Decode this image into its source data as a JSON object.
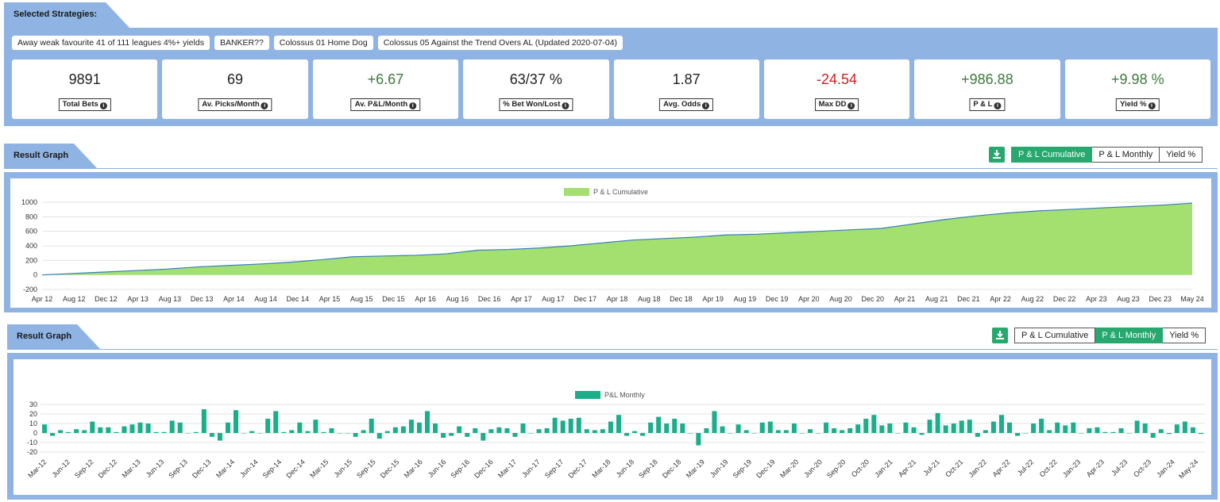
{
  "strategies": {
    "title": "Selected Strategies:",
    "chips": [
      "Away weak favourite 41 of 111 leagues 4%+ yields",
      "BANKER??",
      "Colossus 01 Home Dog",
      "Colossus 05 Against the Trend Overs AL (Updated 2020-07-04)"
    ]
  },
  "stats": [
    {
      "value": "9891",
      "label": "Total Bets",
      "tone": "neutral"
    },
    {
      "value": "69",
      "label": "Av. Picks/Month",
      "tone": "neutral"
    },
    {
      "value": "+6.67",
      "label": "Av. P&L/Month",
      "tone": "pos"
    },
    {
      "value": "63/37 %",
      "label": "% Bet Won/Lost",
      "tone": "neutral"
    },
    {
      "value": "1.87",
      "label": "Avg. Odds",
      "tone": "neutral"
    },
    {
      "value": "-24.54",
      "label": "Max DD",
      "tone": "neg"
    },
    {
      "value": "+986.88",
      "label": "P & L",
      "tone": "pos"
    },
    {
      "value": "+9.98 %",
      "label": "Yield %",
      "tone": "pos"
    }
  ],
  "graph1": {
    "title": "Result Graph",
    "buttons": [
      "P & L Cumulative",
      "P & L Monthly",
      "Yield %"
    ],
    "active": 0
  },
  "graph2": {
    "title": "Result Graph",
    "buttons": [
      "P & L Cumulative",
      "P & L Monthly",
      "Yield %"
    ],
    "active": 1
  },
  "colors": {
    "panel_blue": "#8fb4e3",
    "accent_green": "#27a86e",
    "area_fill": "#a3e070",
    "area_line": "#3a7dbb",
    "bar": "#1aaf8a"
  },
  "chart_data": [
    {
      "type": "area",
      "legend": "P & L Cumulative",
      "legend_position": "top-center",
      "ylim": [
        -200,
        1000
      ],
      "yticks": [
        1000,
        800,
        600,
        400,
        200,
        0,
        -200
      ],
      "x_tick_labels": [
        "Apr 12",
        "Aug 12",
        "Dec 12",
        "Apr 13",
        "Aug 13",
        "Dec 13",
        "Apr 14",
        "Aug 14",
        "Dec 14",
        "Apr 15",
        "Aug 15",
        "Dec 15",
        "Apr 16",
        "Aug 16",
        "Dec 16",
        "Apr 17",
        "Aug 17",
        "Dec 17",
        "Apr 18",
        "Aug 18",
        "Dec 18",
        "Apr 19",
        "Aug 19",
        "Dec 19",
        "Apr 20",
        "Aug 20",
        "Dec 20",
        "Apr 21",
        "Aug 21",
        "Dec 21",
        "Apr 22",
        "Aug 22",
        "Dec 22",
        "Apr 23",
        "Aug 23",
        "Dec 23",
        "May 24"
      ],
      "series": [
        {
          "values": [
            0,
            20,
            40,
            60,
            80,
            110,
            130,
            150,
            175,
            210,
            250,
            260,
            270,
            290,
            340,
            350,
            370,
            400,
            440,
            480,
            500,
            520,
            550,
            560,
            580,
            600,
            620,
            640,
            700,
            760,
            810,
            850,
            880,
            900,
            920,
            940,
            960,
            987
          ]
        }
      ],
      "grid": true
    },
    {
      "type": "bar",
      "legend": "P&L Monthly",
      "legend_position": "top-center",
      "ylim": [
        -20,
        30
      ],
      "yticks": [
        30,
        20,
        10,
        0,
        -10,
        -20
      ],
      "x_tick_labels": [
        "Mar-12",
        "Jun-12",
        "Sep-12",
        "Dec-12",
        "Mar-13",
        "Jun-13",
        "Sep-13",
        "Dec-13",
        "Mar-14",
        "Jun-14",
        "Sep-14",
        "Dec-14",
        "Mar-15",
        "Jun-15",
        "Sep-15",
        "Dec-15",
        "Mar-16",
        "Jun-16",
        "Sep-16",
        "Dec-16",
        "Mar-17",
        "Jun-17",
        "Sep-17",
        "Dec-17",
        "Mar-18",
        "Jun-18",
        "Sep-18",
        "Dec-18",
        "Mar-19",
        "Jun-19",
        "Sep-19",
        "Dec-19",
        "Mar-20",
        "Jun-20",
        "Sep-20",
        "Oct-20",
        "Jan-21",
        "Apr-21",
        "Jul-21",
        "Oct-21",
        "Jan-22",
        "Apr-22",
        "Jul-22",
        "Oct-22",
        "Jan-23",
        "Apr-23",
        "Jul-23",
        "Oct-23",
        "Jan-24",
        "May-24"
      ],
      "values": [
        9,
        -3,
        3,
        1,
        4,
        3,
        12,
        6,
        6,
        1,
        7,
        9,
        11,
        10,
        1,
        1,
        13,
        11,
        0,
        1,
        25,
        -4,
        -8,
        11,
        24,
        0,
        2,
        0,
        15,
        23,
        1,
        3,
        11,
        2,
        14,
        1,
        5,
        0,
        0,
        -4,
        3,
        15,
        -6,
        2,
        6,
        7,
        14,
        11,
        23,
        10,
        -5,
        -3,
        7,
        -4,
        5,
        -8,
        4,
        6,
        5,
        -4,
        10,
        0,
        4,
        5,
        16,
        13,
        15,
        16,
        4,
        3,
        4,
        12,
        19,
        -3,
        2,
        -3,
        11,
        17,
        10,
        15,
        10,
        0,
        -13,
        5,
        23,
        7,
        0,
        9,
        3,
        0,
        11,
        12,
        3,
        3,
        10,
        0,
        4,
        0,
        11,
        5,
        3,
        5,
        9,
        15,
        19,
        8,
        10,
        0,
        11,
        6,
        -2,
        14,
        21,
        8,
        10,
        13,
        14,
        -4,
        3,
        12,
        19,
        11,
        -3,
        0,
        10,
        15,
        3,
        11,
        8,
        11,
        0,
        5,
        6,
        1,
        1,
        5,
        0,
        13,
        10,
        -5,
        4,
        -1,
        9,
        12,
        6,
        -1
      ]
    }
  ]
}
